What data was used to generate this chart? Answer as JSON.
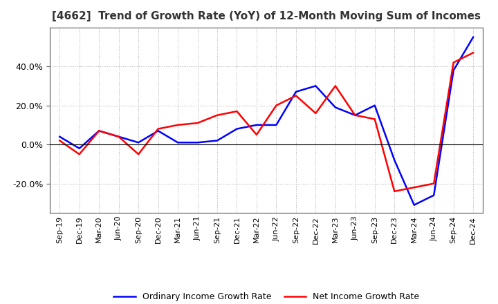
{
  "title": "[4662]  Trend of Growth Rate (YoY) of 12-Month Moving Sum of Incomes",
  "x_labels": [
    "Sep-19",
    "Dec-19",
    "Mar-20",
    "Jun-20",
    "Sep-20",
    "Dec-20",
    "Mar-21",
    "Jun-21",
    "Sep-21",
    "Dec-21",
    "Mar-22",
    "Jun-22",
    "Sep-22",
    "Dec-22",
    "Mar-23",
    "Jun-23",
    "Sep-23",
    "Dec-23",
    "Mar-24",
    "Jun-24",
    "Sep-24",
    "Dec-24"
  ],
  "ordinary_income": [
    0.04,
    -0.02,
    0.07,
    0.04,
    0.01,
    0.07,
    0.01,
    0.01,
    0.02,
    0.08,
    0.1,
    0.1,
    0.27,
    0.3,
    0.19,
    0.15,
    0.2,
    -0.08,
    -0.31,
    -0.26,
    0.38,
    0.55
  ],
  "net_income": [
    0.02,
    -0.05,
    0.07,
    0.04,
    -0.05,
    0.08,
    0.1,
    0.11,
    0.15,
    0.17,
    0.05,
    0.2,
    0.25,
    0.16,
    0.3,
    0.15,
    0.13,
    -0.24,
    -0.22,
    -0.2,
    0.42,
    0.47
  ],
  "ordinary_color": "#0000ff",
  "net_color": "#ff0000",
  "background_color": "#ffffff",
  "plot_bg_color": "#ffffff",
  "grid_color": "#aaaaaa",
  "ylim": [
    -0.35,
    0.6
  ],
  "yticks": [
    -0.2,
    0.0,
    0.2,
    0.4
  ],
  "title_color": "#333333",
  "legend_labels": [
    "Ordinary Income Growth Rate",
    "Net Income Growth Rate"
  ]
}
